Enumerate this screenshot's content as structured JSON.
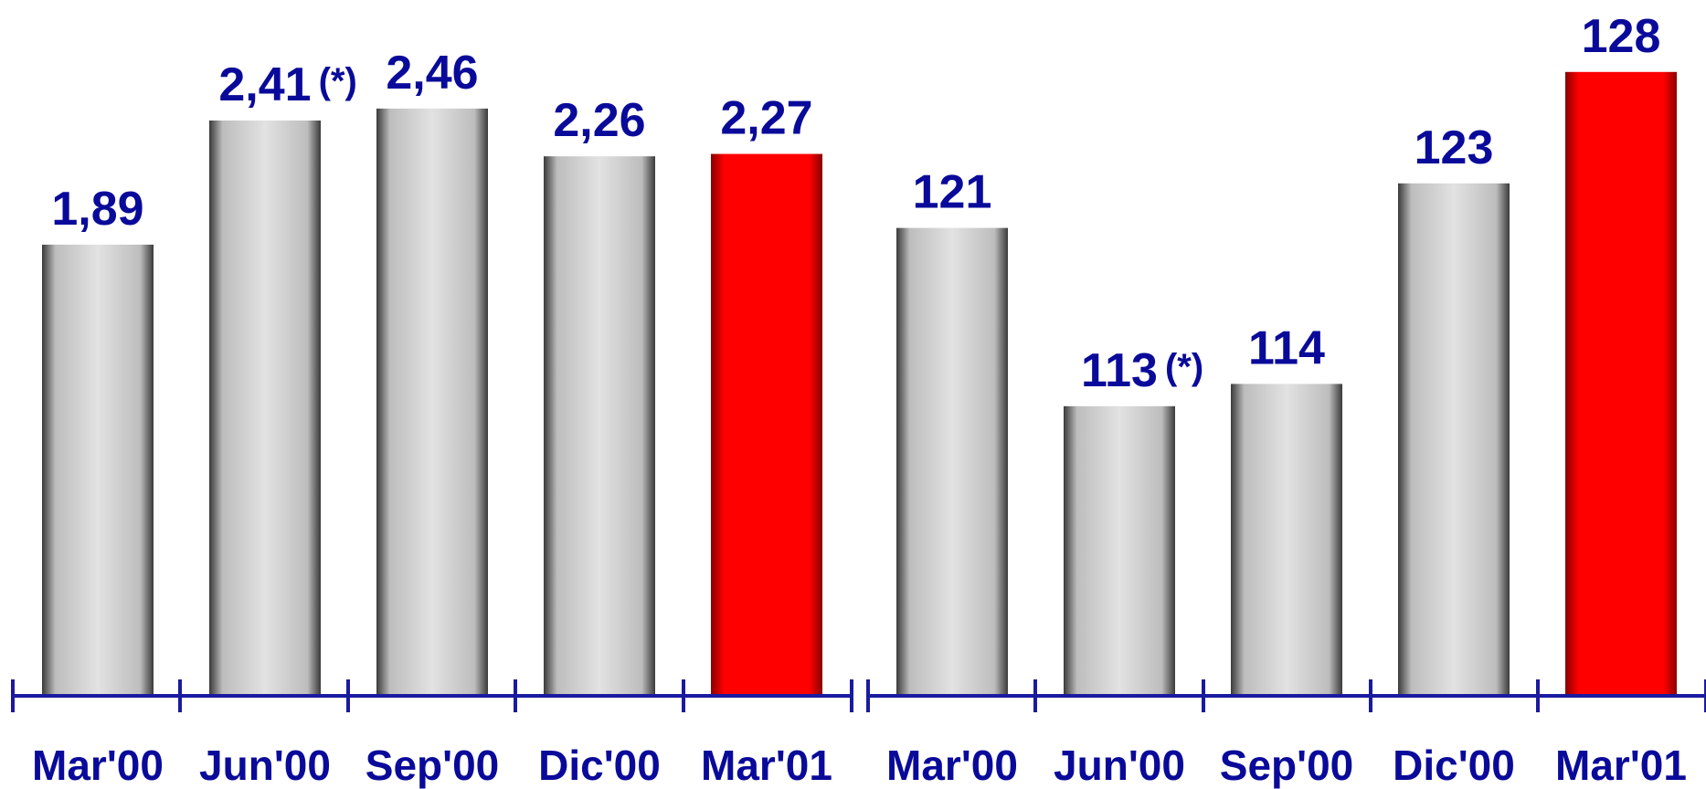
{
  "colors": {
    "text": "#0a0a9a",
    "axis": "#1a1aa0",
    "bar_gray_center": "#e2e2e2",
    "bar_gray_edge": "#3a3a3a",
    "bar_red_center": "#ff0000",
    "bar_red_edge": "#8a0000"
  },
  "chart_data": [
    {
      "type": "bar",
      "categories": [
        "Mar'00",
        "Jun'00",
        "Sep'00",
        "Dic'00",
        "Mar'01"
      ],
      "values": [
        1.89,
        2.41,
        2.46,
        2.26,
        2.27
      ],
      "value_labels": [
        "1,89",
        "2,41",
        "2,46",
        "2,26",
        "2,27"
      ],
      "notes": [
        "",
        "(*)",
        "",
        "",
        ""
      ],
      "highlight": [
        false,
        false,
        false,
        false,
        true
      ],
      "ylim": [
        0,
        2.8
      ],
      "grid": false,
      "title": "",
      "xlabel": "",
      "ylabel": ""
    },
    {
      "type": "bar",
      "categories": [
        "Mar'00",
        "Jun'00",
        "Sep'00",
        "Dic'00",
        "Mar'01"
      ],
      "values": [
        121,
        113,
        114,
        123,
        128
      ],
      "value_labels": [
        "121",
        "113",
        "114",
        "123",
        "128"
      ],
      "notes": [
        "",
        "(*)",
        "",
        "",
        ""
      ],
      "highlight": [
        false,
        false,
        false,
        false,
        true
      ],
      "ylim": [
        100,
        130
      ],
      "grid": false,
      "title": "",
      "xlabel": "",
      "ylabel": ""
    }
  ]
}
